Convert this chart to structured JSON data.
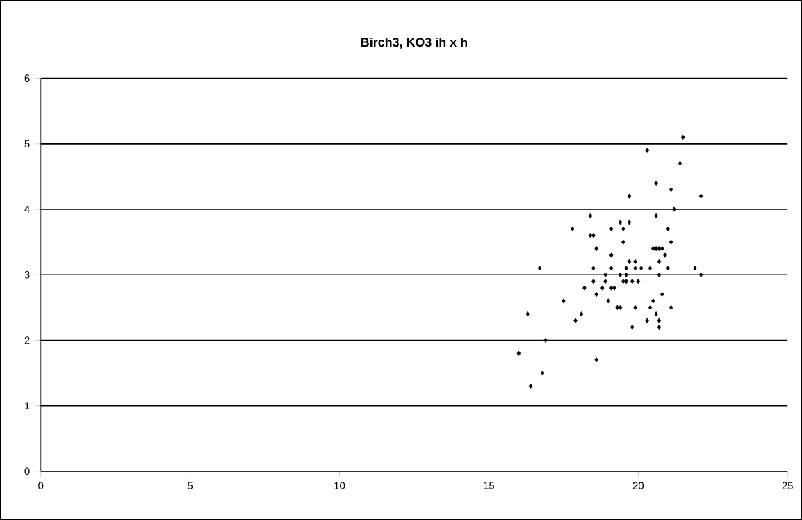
{
  "chart_data": {
    "type": "scatter",
    "title": "Birch3, KO3  ih x h",
    "x": [
      21.5,
      20.3,
      21.4,
      20.6,
      21.1,
      19.7,
      22.1,
      21.2,
      18.4,
      20.6,
      19.4,
      19.7,
      17.8,
      19.1,
      19.5,
      21.0,
      18.4,
      18.5,
      19.5,
      21.1,
      18.6,
      20.5,
      20.6,
      20.7,
      20.8,
      20.9,
      19.1,
      19.7,
      19.9,
      20.7,
      16.7,
      18.5,
      19.1,
      19.6,
      19.9,
      20.1,
      20.4,
      21.0,
      21.9,
      18.5,
      18.9,
      18.9,
      19.4,
      19.6,
      20.7,
      22.1,
      19.5,
      19.6,
      19.8,
      20.0,
      18.2,
      18.8,
      19.1,
      19.2,
      18.6,
      20.8,
      17.5,
      19.0,
      20.5,
      16.3,
      19.3,
      19.4,
      19.9,
      20.4,
      21.1,
      18.1,
      20.6,
      17.9,
      20.3,
      20.7,
      19.8,
      20.7,
      16.9,
      16.0,
      18.6,
      16.8,
      16.4
    ],
    "values": [
      5.1,
      4.9,
      4.7,
      4.4,
      4.3,
      4.2,
      4.2,
      4.0,
      3.9,
      3.9,
      3.8,
      3.8,
      3.7,
      3.7,
      3.7,
      3.7,
      3.6,
      3.6,
      3.5,
      3.5,
      3.4,
      3.4,
      3.4,
      3.4,
      3.4,
      3.3,
      3.3,
      3.2,
      3.2,
      3.2,
      3.1,
      3.1,
      3.1,
      3.1,
      3.1,
      3.1,
      3.1,
      3.1,
      3.1,
      2.9,
      3.0,
      2.9,
      3.0,
      3.0,
      3.0,
      3.0,
      2.9,
      2.9,
      2.9,
      2.9,
      2.8,
      2.8,
      2.8,
      2.8,
      2.7,
      2.7,
      2.6,
      2.6,
      2.6,
      2.4,
      2.5,
      2.5,
      2.5,
      2.5,
      2.5,
      2.4,
      2.4,
      2.3,
      2.3,
      2.3,
      2.2,
      2.2,
      2.0,
      1.8,
      1.7,
      1.5,
      1.3
    ],
    "color": "#000000",
    "marker": "diamond",
    "xlim": [
      0,
      25
    ],
    "ylim": [
      0,
      6
    ],
    "xticks": [
      0,
      5,
      10,
      15,
      20,
      25
    ],
    "yticks": [
      0,
      1,
      2,
      3,
      4,
      5,
      6
    ],
    "grid": "y"
  }
}
